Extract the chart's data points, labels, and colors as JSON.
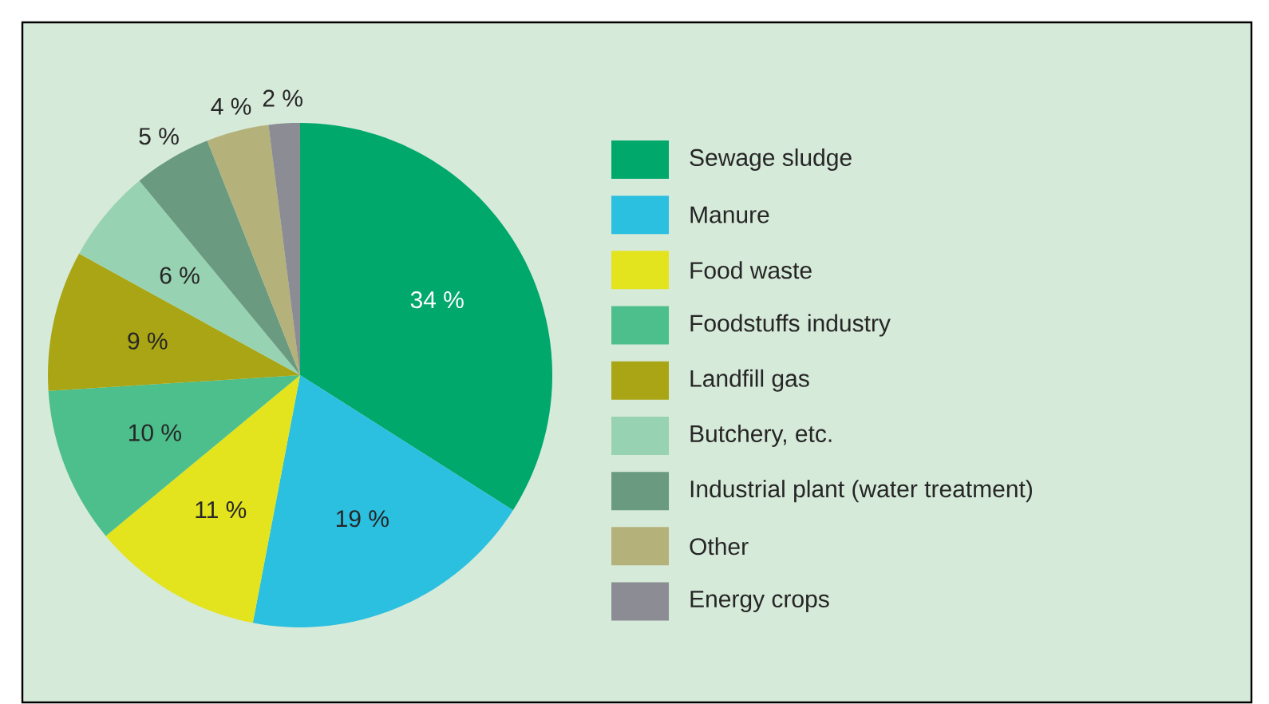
{
  "chart_data": {
    "type": "pie",
    "categories": [
      "Sewage sludge",
      "Manure",
      "Food waste",
      "Foodstuffs industry",
      "Landfill gas",
      "Butchery, etc.",
      "Industrial plant (water treatment)",
      "Other",
      "Energy crops"
    ],
    "values": [
      34,
      19,
      11,
      10,
      9,
      6,
      5,
      4,
      2
    ],
    "value_labels": [
      "34 %",
      "19 %",
      "11 %",
      "10 %",
      "9 %",
      "6 %",
      "5 %",
      "4 %",
      "2 %"
    ],
    "colors": [
      "#00a86b",
      "#2bbfe0",
      "#e3e31e",
      "#4cbf8c",
      "#a9a514",
      "#97d3b2",
      "#6a9a80",
      "#b4b27a",
      "#8c8c94"
    ],
    "legend": "right"
  }
}
